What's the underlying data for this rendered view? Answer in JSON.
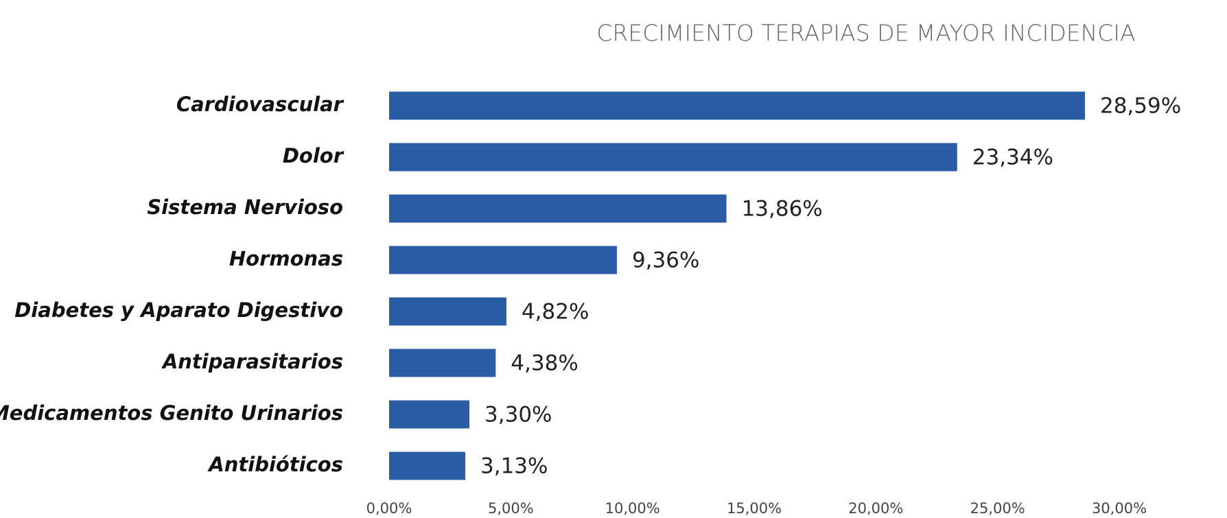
{
  "chart_data": {
    "type": "bar",
    "orientation": "horizontal",
    "title": "CRECIMIENTO TERAPIAS DE MAYOR INCIDENCIA",
    "categories": [
      "Cardiovascular",
      "Dolor",
      "Sistema Nervioso",
      "Hormonas",
      "Diabetes y Aparato Digestivo",
      "Antiparasitarios",
      "Medicamentos Genito Urinarios",
      "Antibióticos"
    ],
    "values": [
      28.59,
      23.34,
      13.86,
      9.36,
      4.82,
      4.38,
      3.3,
      3.13
    ],
    "value_labels": [
      "28,59%",
      "23,34%",
      "13,86%",
      "9,36%",
      "4,82%",
      "4,38%",
      "3,30%",
      "3,13%"
    ],
    "color": "#2b5ca6",
    "xlim": [
      0,
      30
    ],
    "xticks": [
      {
        "value": 0,
        "label": "0,00%"
      },
      {
        "value": 5,
        "label": "5,00%"
      },
      {
        "value": 10,
        "label": "10,00%"
      },
      {
        "value": 15,
        "label": "15,00%"
      },
      {
        "value": 20,
        "label": "20,00%"
      },
      {
        "value": 25,
        "label": "25,00%"
      },
      {
        "value": 30,
        "label": "30,00%"
      }
    ],
    "grid": false
  }
}
